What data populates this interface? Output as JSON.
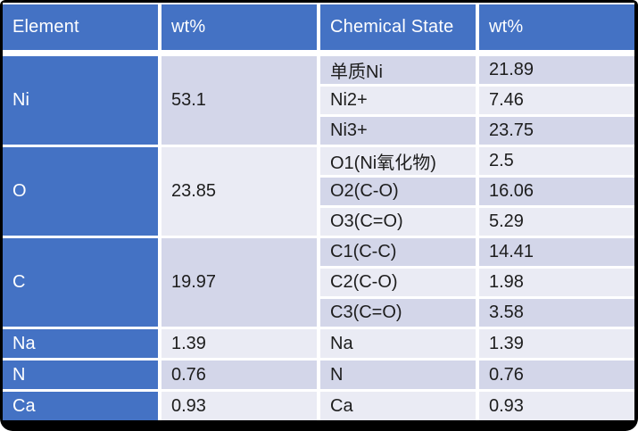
{
  "colors": {
    "accent_blue": "#4472C4",
    "band_dark": "#D3D6E9",
    "band_light": "#EAEBF4",
    "header_text": "#FFFFFF",
    "body_text": "#1D1D1D",
    "grid_gap": "#FFFFFF",
    "frame_border": "#000000"
  },
  "table": {
    "headers": [
      "Element",
      "wt%",
      "Chemical State",
      "wt%"
    ],
    "element_cells": [
      {
        "label": "Ni",
        "wt": "53.1"
      },
      {
        "label": "O",
        "wt": "23.85"
      },
      {
        "label": "C",
        "wt": "19.97"
      },
      {
        "label": "Na",
        "wt": "1.39"
      },
      {
        "label": "N",
        "wt": "0.76"
      },
      {
        "label": "Ca",
        "wt": "0.93"
      }
    ],
    "state_rows": [
      {
        "state": "单质Ni",
        "wt": "21.89"
      },
      {
        "state": "Ni2+",
        "wt": "7.46"
      },
      {
        "state": "Ni3+",
        "wt": "23.75"
      },
      {
        "state": "O1(Ni氧化物)",
        "wt": "2.5"
      },
      {
        "state": "O2(C-O)",
        "wt": "16.06"
      },
      {
        "state": "O3(C=O)",
        "wt": "5.29"
      },
      {
        "state": "C1(C-C)",
        "wt": "14.41"
      },
      {
        "state": "C2(C-O)",
        "wt": "1.98"
      },
      {
        "state": "C3(C=O)",
        "wt": "3.58"
      },
      {
        "state": "Na",
        "wt": "1.39"
      },
      {
        "state": "N",
        "wt": "0.76"
      },
      {
        "state": "Ca",
        "wt": "0.93"
      }
    ]
  },
  "chart_data": {
    "type": "table",
    "columns": [
      "Element",
      "wt%",
      "Chemical State",
      "wt%"
    ],
    "groups": [
      {
        "element": "Ni",
        "element_wt": 53.1,
        "states": [
          {
            "name": "单质Ni",
            "wt": 21.89
          },
          {
            "name": "Ni2+",
            "wt": 7.46
          },
          {
            "name": "Ni3+",
            "wt": 23.75
          }
        ]
      },
      {
        "element": "O",
        "element_wt": 23.85,
        "states": [
          {
            "name": "O1(Ni氧化物)",
            "wt": 2.5
          },
          {
            "name": "O2(C-O)",
            "wt": 16.06
          },
          {
            "name": "O3(C=O)",
            "wt": 5.29
          }
        ]
      },
      {
        "element": "C",
        "element_wt": 19.97,
        "states": [
          {
            "name": "C1(C-C)",
            "wt": 14.41
          },
          {
            "name": "C2(C-O)",
            "wt": 1.98
          },
          {
            "name": "C3(C=O)",
            "wt": 3.58
          }
        ]
      },
      {
        "element": "Na",
        "element_wt": 1.39,
        "states": [
          {
            "name": "Na",
            "wt": 1.39
          }
        ]
      },
      {
        "element": "N",
        "element_wt": 0.76,
        "states": [
          {
            "name": "N",
            "wt": 0.76
          }
        ]
      },
      {
        "element": "Ca",
        "element_wt": 0.93,
        "states": [
          {
            "name": "Ca",
            "wt": 0.93
          }
        ]
      }
    ],
    "layout": {
      "banded_rows": true,
      "band_pattern": "odd rows dark (#D3D6E9), even rows light (#EAEBF4)",
      "merged_cells": "Element and first wt% column merged vertically across each element's chemical states",
      "header_fill": "#4472C4",
      "first_column_fill": "#4472C4"
    }
  }
}
